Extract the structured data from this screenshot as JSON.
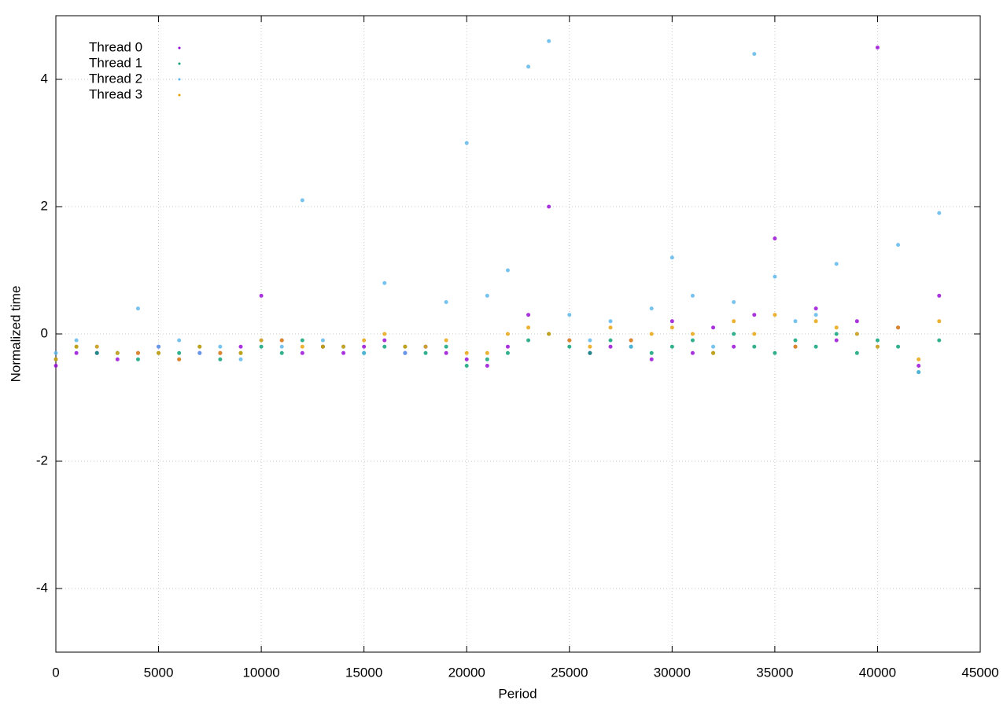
{
  "chart_data": {
    "type": "scatter",
    "xlabel": "Period",
    "ylabel": "Normalized time",
    "xlim": [
      0,
      45000
    ],
    "ylim": [
      -5,
      5
    ],
    "xticks": [
      0,
      5000,
      10000,
      15000,
      20000,
      25000,
      30000,
      35000,
      40000,
      45000
    ],
    "yticks": [
      -4,
      -2,
      0,
      2,
      4
    ],
    "grid": true,
    "legend": "top-left",
    "x": [
      0,
      1000,
      2000,
      3000,
      4000,
      5000,
      6000,
      7000,
      8000,
      9000,
      10000,
      11000,
      12000,
      13000,
      14000,
      15000,
      16000,
      17000,
      18000,
      19000,
      20000,
      21000,
      22000,
      23000,
      24000,
      25000,
      26000,
      27000,
      28000,
      29000,
      30000,
      31000,
      32000,
      33000,
      34000,
      35000,
      36000,
      37000,
      38000,
      39000,
      40000,
      41000,
      42000,
      43000
    ],
    "series": [
      {
        "name": "Thread 0",
        "color": "#9400d3",
        "values": [
          -0.5,
          -0.3,
          -0.3,
          -0.4,
          -0.3,
          -0.2,
          -0.4,
          -0.3,
          -0.3,
          -0.2,
          0.6,
          -0.1,
          -0.3,
          -0.2,
          -0.3,
          -0.2,
          -0.1,
          -0.3,
          -0.2,
          -0.3,
          -0.4,
          -0.5,
          -0.2,
          0.3,
          2.0,
          -0.1,
          -0.3,
          -0.2,
          -0.1,
          -0.4,
          0.2,
          -0.3,
          0.1,
          -0.2,
          0.3,
          1.5,
          -0.2,
          0.4,
          -0.1,
          0.2,
          4.5,
          0.1,
          -0.5,
          0.6
        ]
      },
      {
        "name": "Thread 1",
        "color": "#009e73",
        "values": [
          -0.4,
          -0.2,
          -0.3,
          -0.3,
          -0.4,
          -0.3,
          -0.3,
          -0.2,
          -0.4,
          -0.3,
          -0.2,
          -0.3,
          -0.1,
          -0.2,
          -0.2,
          -0.3,
          -0.2,
          -0.2,
          -0.3,
          -0.2,
          -0.5,
          -0.4,
          -0.3,
          -0.1,
          0.0,
          -0.2,
          -0.3,
          -0.1,
          -0.2,
          -0.3,
          -0.2,
          -0.1,
          -0.3,
          0.0,
          -0.2,
          -0.3,
          -0.1,
          -0.2,
          0.0,
          -0.3,
          -0.1,
          -0.2,
          -0.6,
          -0.1
        ]
      },
      {
        "name": "Thread 2",
        "color": "#56b4e9",
        "values": [
          -0.3,
          -0.1,
          -0.2,
          -0.3,
          0.4,
          -0.2,
          -0.1,
          -0.3,
          -0.2,
          -0.4,
          -0.1,
          -0.2,
          2.1,
          -0.1,
          -0.2,
          -0.3,
          0.8,
          -0.3,
          -0.2,
          0.5,
          3.0,
          0.6,
          1.0,
          4.2,
          4.6,
          0.3,
          -0.1,
          0.2,
          -0.2,
          0.4,
          1.2,
          0.6,
          -0.2,
          0.5,
          4.4,
          0.9,
          0.2,
          0.3,
          1.1,
          0.0,
          -0.2,
          1.4,
          -0.6,
          1.9
        ]
      },
      {
        "name": "Thread 3",
        "color": "#e69f00",
        "values": [
          -0.4,
          -0.2,
          -0.2,
          -0.3,
          -0.3,
          -0.3,
          -0.4,
          -0.2,
          -0.3,
          -0.3,
          -0.1,
          -0.1,
          -0.2,
          -0.2,
          -0.2,
          -0.1,
          0.0,
          -0.2,
          -0.2,
          -0.1,
          -0.3,
          -0.3,
          0.0,
          0.1,
          0.0,
          -0.1,
          -0.2,
          0.1,
          -0.1,
          0.0,
          0.1,
          0.0,
          -0.3,
          0.2,
          0.0,
          0.3,
          -0.2,
          0.2,
          0.1,
          0.0,
          -0.2,
          0.1,
          -0.4,
          0.2
        ]
      }
    ]
  }
}
